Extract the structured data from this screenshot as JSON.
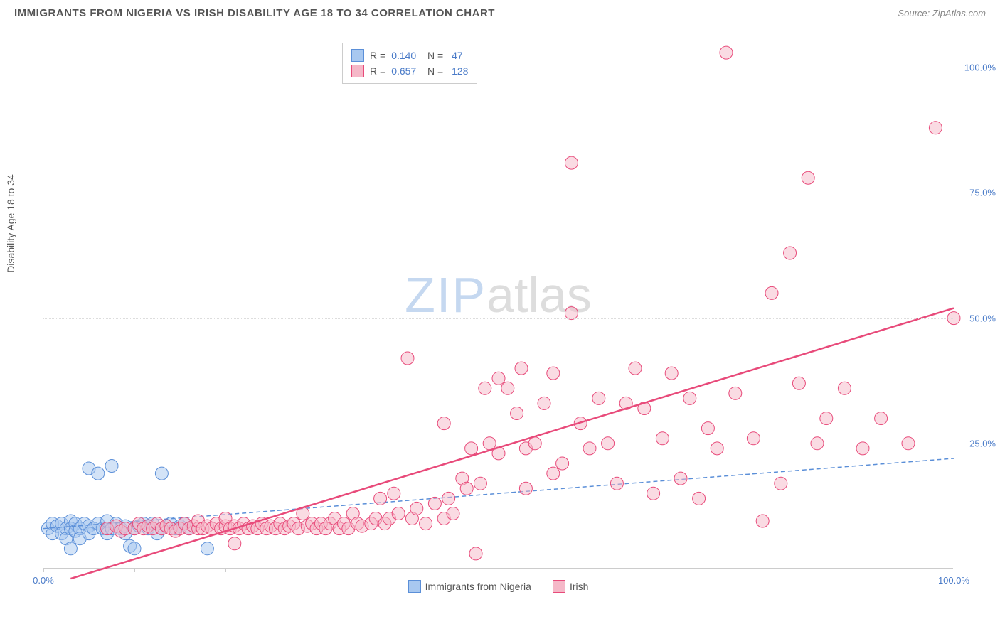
{
  "header": {
    "title": "IMMIGRANTS FROM NIGERIA VS IRISH DISABILITY AGE 18 TO 34 CORRELATION CHART",
    "source": "Source: ZipAtlas.com"
  },
  "chart": {
    "type": "scatter",
    "y_axis_label": "Disability Age 18 to 34",
    "background_color": "#ffffff",
    "grid_color": "#dddddd",
    "axis_color": "#cccccc",
    "xlim": [
      0,
      100
    ],
    "ylim": [
      0,
      105
    ],
    "x_ticks": [
      0,
      10,
      20,
      30,
      40,
      50,
      60,
      70,
      80,
      90,
      100
    ],
    "x_tick_labels": {
      "0": "0.0%",
      "100": "100.0%"
    },
    "y_ticks": [
      25,
      50,
      75,
      100
    ],
    "y_tick_labels": {
      "25": "25.0%",
      "50": "50.0%",
      "75": "75.0%",
      "100": "100.0%"
    },
    "marker_radius": 9,
    "marker_opacity": 0.5,
    "watermark": {
      "zip": "ZIP",
      "atlas": "atlas"
    },
    "series": [
      {
        "name": "Immigrants from Nigeria",
        "color_fill": "#a8c8f0",
        "color_stroke": "#5b8fd8",
        "R": "0.140",
        "N": "47",
        "regression": {
          "x1": 0,
          "y1": 8,
          "x2": 100,
          "y2": 22,
          "dash": "6,4",
          "width": 1.5,
          "color": "#5b8fd8"
        },
        "points": [
          [
            0.5,
            8
          ],
          [
            1,
            9
          ],
          [
            1,
            7
          ],
          [
            1.5,
            8.5
          ],
          [
            2,
            9
          ],
          [
            2,
            7
          ],
          [
            2.5,
            8
          ],
          [
            2.5,
            6
          ],
          [
            3,
            9.5
          ],
          [
            3,
            8
          ],
          [
            3,
            4
          ],
          [
            3.5,
            9
          ],
          [
            3.5,
            7.5
          ],
          [
            4,
            8
          ],
          [
            4,
            6
          ],
          [
            4.5,
            9
          ],
          [
            5,
            8.5
          ],
          [
            5,
            7
          ],
          [
            5,
            20
          ],
          [
            5.5,
            8
          ],
          [
            6,
            9
          ],
          [
            6,
            19
          ],
          [
            6.5,
            8
          ],
          [
            7,
            9.5
          ],
          [
            7,
            7
          ],
          [
            7.5,
            8
          ],
          [
            7.5,
            20.5
          ],
          [
            8,
            9
          ],
          [
            8.5,
            8
          ],
          [
            9,
            7
          ],
          [
            9,
            8.5
          ],
          [
            9.5,
            4.5
          ],
          [
            10,
            8
          ],
          [
            10,
            4
          ],
          [
            10.5,
            8.5
          ],
          [
            11,
            9
          ],
          [
            11.5,
            8
          ],
          [
            12,
            9
          ],
          [
            12.5,
            7
          ],
          [
            13,
            19
          ],
          [
            13,
            8
          ],
          [
            14,
            9
          ],
          [
            14.5,
            8
          ],
          [
            15,
            8.5
          ],
          [
            15.5,
            9
          ],
          [
            16,
            8
          ],
          [
            18,
            4
          ]
        ]
      },
      {
        "name": "Irish",
        "color_fill": "#f5b8c8",
        "color_stroke": "#e84a7a",
        "R": "0.657",
        "N": "128",
        "regression": {
          "x1": 3,
          "y1": -2,
          "x2": 100,
          "y2": 52,
          "dash": "",
          "width": 2.5,
          "color": "#e84a7a"
        },
        "points": [
          [
            7,
            8
          ],
          [
            8,
            8.5
          ],
          [
            8.5,
            7.5
          ],
          [
            9,
            8
          ],
          [
            10,
            8
          ],
          [
            10.5,
            9
          ],
          [
            11,
            8
          ],
          [
            11.5,
            8.5
          ],
          [
            12,
            8
          ],
          [
            12.5,
            9
          ],
          [
            13,
            8
          ],
          [
            13.5,
            8.5
          ],
          [
            14,
            8
          ],
          [
            14.5,
            7.5
          ],
          [
            15,
            8
          ],
          [
            15.5,
            9
          ],
          [
            16,
            8
          ],
          [
            16.5,
            8.5
          ],
          [
            17,
            8
          ],
          [
            17,
            9.5
          ],
          [
            17.5,
            8
          ],
          [
            18,
            8.5
          ],
          [
            18.5,
            8
          ],
          [
            19,
            9
          ],
          [
            19.5,
            8
          ],
          [
            20,
            8.5
          ],
          [
            20,
            10
          ],
          [
            20.5,
            8
          ],
          [
            21,
            5
          ],
          [
            21,
            8.5
          ],
          [
            21.5,
            8
          ],
          [
            22,
            9
          ],
          [
            22.5,
            8
          ],
          [
            23,
            8.5
          ],
          [
            23.5,
            8
          ],
          [
            24,
            9
          ],
          [
            24.5,
            8
          ],
          [
            25,
            8.5
          ],
          [
            25.5,
            8
          ],
          [
            26,
            9
          ],
          [
            26.5,
            8
          ],
          [
            27,
            8.5
          ],
          [
            27.5,
            9
          ],
          [
            28,
            8
          ],
          [
            28.5,
            11
          ],
          [
            29,
            8.5
          ],
          [
            29.5,
            9
          ],
          [
            30,
            8
          ],
          [
            30.5,
            9
          ],
          [
            31,
            8
          ],
          [
            31.5,
            9
          ],
          [
            32,
            10
          ],
          [
            32.5,
            8
          ],
          [
            33,
            9
          ],
          [
            33.5,
            8
          ],
          [
            34,
            11
          ],
          [
            34.5,
            9
          ],
          [
            35,
            8.5
          ],
          [
            36,
            9
          ],
          [
            36.5,
            10
          ],
          [
            37,
            14
          ],
          [
            37.5,
            9
          ],
          [
            38,
            10
          ],
          [
            38.5,
            15
          ],
          [
            39,
            11
          ],
          [
            40,
            42
          ],
          [
            40.5,
            10
          ],
          [
            41,
            12
          ],
          [
            42,
            9
          ],
          [
            43,
            13
          ],
          [
            44,
            10
          ],
          [
            44,
            29
          ],
          [
            44.5,
            14
          ],
          [
            45,
            11
          ],
          [
            46,
            18
          ],
          [
            46.5,
            16
          ],
          [
            47,
            24
          ],
          [
            47.5,
            3
          ],
          [
            48,
            17
          ],
          [
            48.5,
            36
          ],
          [
            49,
            25
          ],
          [
            50,
            23
          ],
          [
            50,
            38
          ],
          [
            51,
            36
          ],
          [
            52,
            31
          ],
          [
            52.5,
            40
          ],
          [
            53,
            16
          ],
          [
            53,
            24
          ],
          [
            54,
            25
          ],
          [
            55,
            33
          ],
          [
            56,
            19
          ],
          [
            56,
            39
          ],
          [
            57,
            21
          ],
          [
            58,
            51
          ],
          [
            58,
            81
          ],
          [
            59,
            29
          ],
          [
            60,
            24
          ],
          [
            61,
            34
          ],
          [
            62,
            25
          ],
          [
            63,
            17
          ],
          [
            64,
            33
          ],
          [
            65,
            40
          ],
          [
            66,
            32
          ],
          [
            67,
            15
          ],
          [
            68,
            26
          ],
          [
            69,
            39
          ],
          [
            70,
            18
          ],
          [
            71,
            34
          ],
          [
            72,
            14
          ],
          [
            73,
            28
          ],
          [
            74,
            24
          ],
          [
            75,
            103
          ],
          [
            76,
            35
          ],
          [
            78,
            26
          ],
          [
            79,
            9.5
          ],
          [
            80,
            55
          ],
          [
            81,
            17
          ],
          [
            82,
            63
          ],
          [
            83,
            37
          ],
          [
            84,
            78
          ],
          [
            85,
            25
          ],
          [
            86,
            30
          ],
          [
            88,
            36
          ],
          [
            90,
            24
          ],
          [
            92,
            30
          ],
          [
            95,
            25
          ],
          [
            98,
            88
          ],
          [
            100,
            50
          ]
        ]
      }
    ],
    "bottom_legend": [
      {
        "label": "Immigrants from Nigeria",
        "fill": "#a8c8f0",
        "stroke": "#5b8fd8"
      },
      {
        "label": "Irish",
        "fill": "#f5b8c8",
        "stroke": "#e84a7a"
      }
    ]
  }
}
